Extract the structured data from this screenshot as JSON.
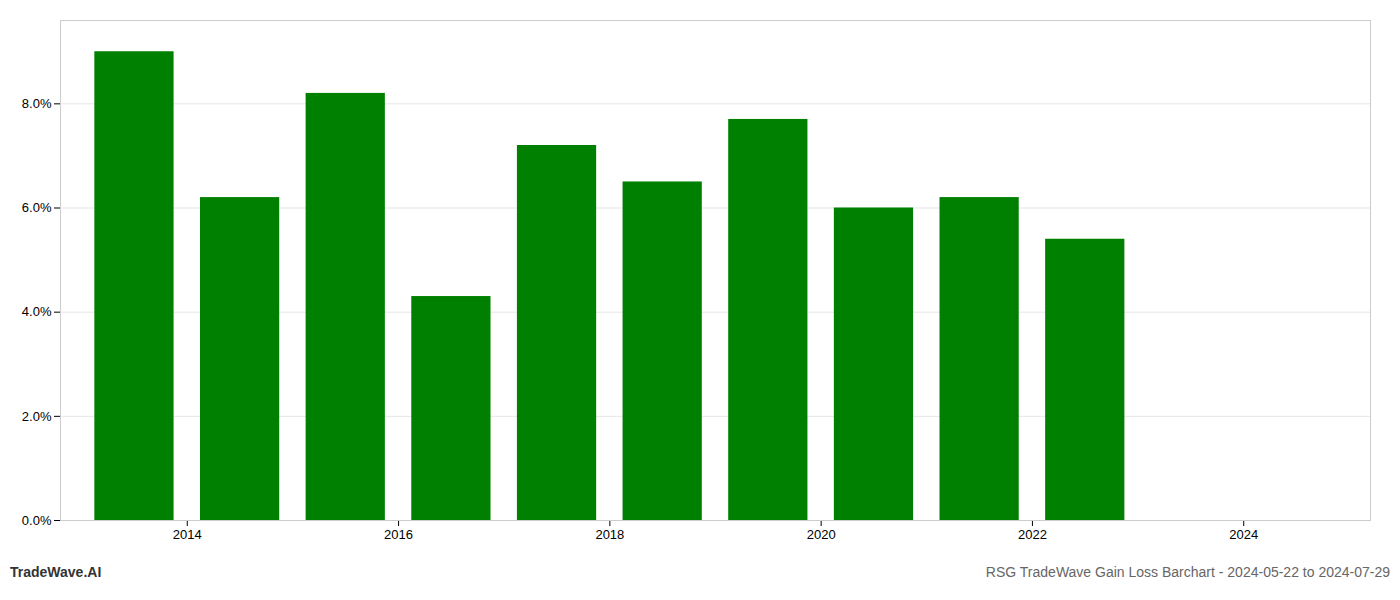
{
  "chart_data": {
    "type": "bar",
    "title": "RSG TradeWave Gain Loss Barchart - 2024-05-22 to 2024-07-29",
    "subtitle": "TradeWave.AI",
    "x": [
      2013,
      2014,
      2015,
      2016,
      2017,
      2018,
      2019,
      2020,
      2021,
      2022
    ],
    "values": [
      0.09,
      0.062,
      0.082,
      0.043,
      0.072,
      0.065,
      0.077,
      0.06,
      0.062,
      0.054
    ],
    "color": "#008000",
    "xlim": [
      2012.3,
      2024.7
    ],
    "xticks": [
      {
        "value": 2013.5,
        "label": "2014"
      },
      {
        "value": 2015.5,
        "label": "2016"
      },
      {
        "value": 2017.5,
        "label": "2018"
      },
      {
        "value": 2019.5,
        "label": "2020"
      },
      {
        "value": 2021.5,
        "label": "2022"
      },
      {
        "value": 2023.5,
        "label": "2024"
      }
    ],
    "ylim": [
      0.0,
      0.096
    ],
    "yticks": [
      {
        "value": 0.0,
        "label": "0.0%"
      },
      {
        "value": 0.02,
        "label": "2.0%"
      },
      {
        "value": 0.04,
        "label": "4.0%"
      },
      {
        "value": 0.06,
        "label": "6.0%"
      },
      {
        "value": 0.08,
        "label": "8.0%"
      }
    ],
    "grid": true
  }
}
